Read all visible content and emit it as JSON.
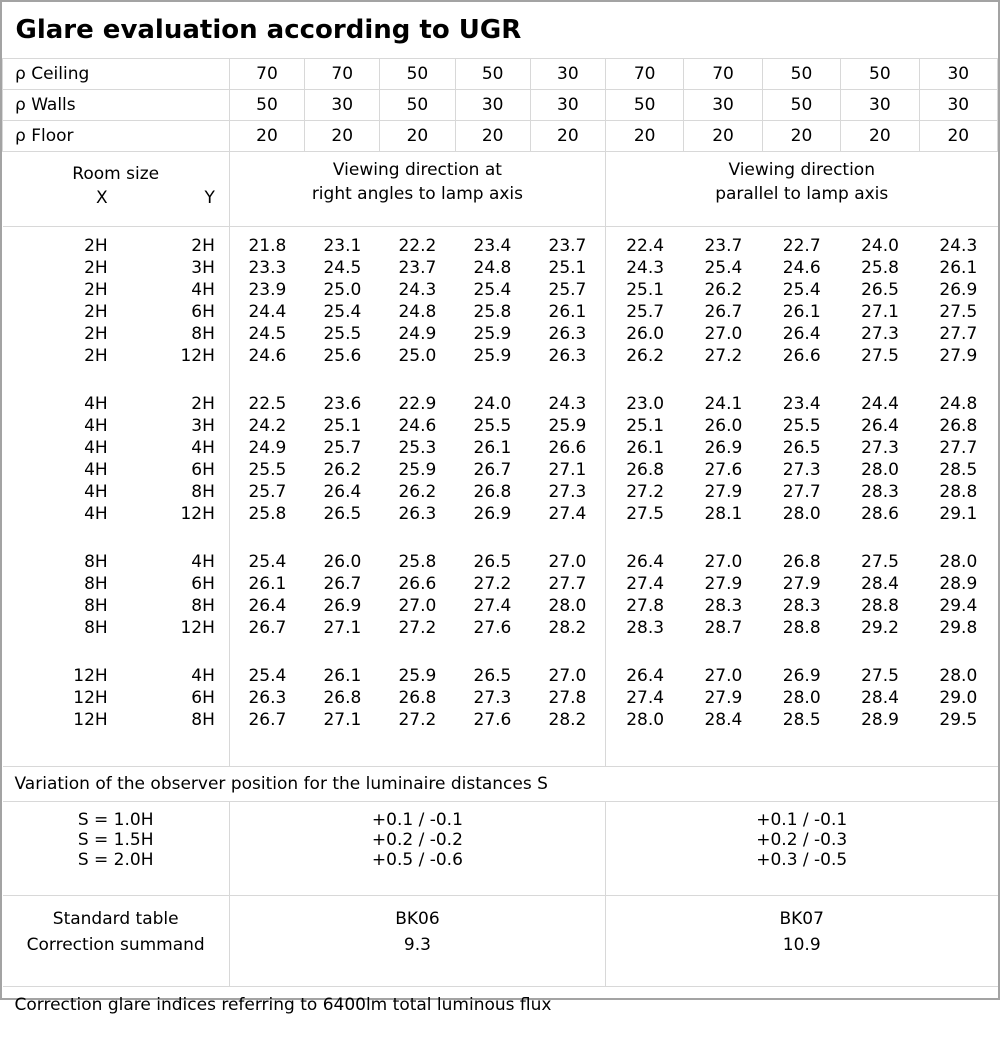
{
  "title": "Glare evaluation according to UGR",
  "reflectance_rows": [
    {
      "label": "ρ Ceiling",
      "values": [
        "70",
        "70",
        "50",
        "50",
        "30",
        "70",
        "70",
        "50",
        "50",
        "30"
      ]
    },
    {
      "label": "ρ Walls",
      "values": [
        "50",
        "30",
        "50",
        "30",
        "30",
        "50",
        "30",
        "50",
        "30",
        "30"
      ]
    },
    {
      "label": "ρ Floor",
      "values": [
        "20",
        "20",
        "20",
        "20",
        "20",
        "20",
        "20",
        "20",
        "20",
        "20"
      ]
    }
  ],
  "header": {
    "room_size_label": "Room size",
    "x_label": "X",
    "y_label": "Y",
    "group1_line1": "Viewing direction at",
    "group1_line2": "right angles to lamp axis",
    "group2_line1": "Viewing direction",
    "group2_line2": "parallel to lamp axis"
  },
  "body_blocks": [
    {
      "rows": [
        {
          "x": "2H",
          "y": "2H",
          "g1": [
            "21.8",
            "23.1",
            "22.2",
            "23.4",
            "23.7"
          ],
          "g2": [
            "22.4",
            "23.7",
            "22.7",
            "24.0",
            "24.3"
          ]
        },
        {
          "x": "2H",
          "y": "3H",
          "g1": [
            "23.3",
            "24.5",
            "23.7",
            "24.8",
            "25.1"
          ],
          "g2": [
            "24.3",
            "25.4",
            "24.6",
            "25.8",
            "26.1"
          ]
        },
        {
          "x": "2H",
          "y": "4H",
          "g1": [
            "23.9",
            "25.0",
            "24.3",
            "25.4",
            "25.7"
          ],
          "g2": [
            "25.1",
            "26.2",
            "25.4",
            "26.5",
            "26.9"
          ]
        },
        {
          "x": "2H",
          "y": "6H",
          "g1": [
            "24.4",
            "25.4",
            "24.8",
            "25.8",
            "26.1"
          ],
          "g2": [
            "25.7",
            "26.7",
            "26.1",
            "27.1",
            "27.5"
          ]
        },
        {
          "x": "2H",
          "y": "8H",
          "g1": [
            "24.5",
            "25.5",
            "24.9",
            "25.9",
            "26.3"
          ],
          "g2": [
            "26.0",
            "27.0",
            "26.4",
            "27.3",
            "27.7"
          ]
        },
        {
          "x": "2H",
          "y": "12H",
          "g1": [
            "24.6",
            "25.6",
            "25.0",
            "25.9",
            "26.3"
          ],
          "g2": [
            "26.2",
            "27.2",
            "26.6",
            "27.5",
            "27.9"
          ]
        }
      ]
    },
    {
      "rows": [
        {
          "x": "4H",
          "y": "2H",
          "g1": [
            "22.5",
            "23.6",
            "22.9",
            "24.0",
            "24.3"
          ],
          "g2": [
            "23.0",
            "24.1",
            "23.4",
            "24.4",
            "24.8"
          ]
        },
        {
          "x": "4H",
          "y": "3H",
          "g1": [
            "24.2",
            "25.1",
            "24.6",
            "25.5",
            "25.9"
          ],
          "g2": [
            "25.1",
            "26.0",
            "25.5",
            "26.4",
            "26.8"
          ]
        },
        {
          "x": "4H",
          "y": "4H",
          "g1": [
            "24.9",
            "25.7",
            "25.3",
            "26.1",
            "26.6"
          ],
          "g2": [
            "26.1",
            "26.9",
            "26.5",
            "27.3",
            "27.7"
          ]
        },
        {
          "x": "4H",
          "y": "6H",
          "g1": [
            "25.5",
            "26.2",
            "25.9",
            "26.7",
            "27.1"
          ],
          "g2": [
            "26.8",
            "27.6",
            "27.3",
            "28.0",
            "28.5"
          ]
        },
        {
          "x": "4H",
          "y": "8H",
          "g1": [
            "25.7",
            "26.4",
            "26.2",
            "26.8",
            "27.3"
          ],
          "g2": [
            "27.2",
            "27.9",
            "27.7",
            "28.3",
            "28.8"
          ]
        },
        {
          "x": "4H",
          "y": "12H",
          "g1": [
            "25.8",
            "26.5",
            "26.3",
            "26.9",
            "27.4"
          ],
          "g2": [
            "27.5",
            "28.1",
            "28.0",
            "28.6",
            "29.1"
          ]
        }
      ]
    },
    {
      "rows": [
        {
          "x": "8H",
          "y": "4H",
          "g1": [
            "25.4",
            "26.0",
            "25.8",
            "26.5",
            "27.0"
          ],
          "g2": [
            "26.4",
            "27.0",
            "26.8",
            "27.5",
            "28.0"
          ]
        },
        {
          "x": "8H",
          "y": "6H",
          "g1": [
            "26.1",
            "26.7",
            "26.6",
            "27.2",
            "27.7"
          ],
          "g2": [
            "27.4",
            "27.9",
            "27.9",
            "28.4",
            "28.9"
          ]
        },
        {
          "x": "8H",
          "y": "8H",
          "g1": [
            "26.4",
            "26.9",
            "27.0",
            "27.4",
            "28.0"
          ],
          "g2": [
            "27.8",
            "28.3",
            "28.3",
            "28.8",
            "29.4"
          ]
        },
        {
          "x": "8H",
          "y": "12H",
          "g1": [
            "26.7",
            "27.1",
            "27.2",
            "27.6",
            "28.2"
          ],
          "g2": [
            "28.3",
            "28.7",
            "28.8",
            "29.2",
            "29.8"
          ]
        }
      ]
    },
    {
      "rows": [
        {
          "x": "12H",
          "y": "4H",
          "g1": [
            "25.4",
            "26.1",
            "25.9",
            "26.5",
            "27.0"
          ],
          "g2": [
            "26.4",
            "27.0",
            "26.9",
            "27.5",
            "28.0"
          ]
        },
        {
          "x": "12H",
          "y": "6H",
          "g1": [
            "26.3",
            "26.8",
            "26.8",
            "27.3",
            "27.8"
          ],
          "g2": [
            "27.4",
            "27.9",
            "28.0",
            "28.4",
            "29.0"
          ]
        },
        {
          "x": "12H",
          "y": "8H",
          "g1": [
            "26.7",
            "27.1",
            "27.2",
            "27.6",
            "28.2"
          ],
          "g2": [
            "28.0",
            "28.4",
            "28.5",
            "28.9",
            "29.5"
          ]
        }
      ]
    }
  ],
  "variation_note": "Variation of the observer position for the luminaire distances S",
  "s_variation": {
    "labels": [
      "S = 1.0H",
      "S = 1.5H",
      "S = 2.0H"
    ],
    "group1": [
      "+0.1 / -0.1",
      "+0.2 / -0.2",
      "+0.5 / -0.6"
    ],
    "group2": [
      "+0.1 / -0.1",
      "+0.2 / -0.3",
      "+0.3 / -0.5"
    ]
  },
  "summary": {
    "row1_label": "Standard table",
    "row2_label": "Correction summand",
    "group1_table": "BK06",
    "group1_summand": "9.3",
    "group2_table": "BK07",
    "group2_summand": "10.9"
  },
  "footer_note": "Correction glare indices referring to 6400lm total luminous flux",
  "colors": {
    "grid_line": "#d8d8d8",
    "outer_border": "#a3a3a3",
    "text": "#000000",
    "background": "#ffffff"
  }
}
